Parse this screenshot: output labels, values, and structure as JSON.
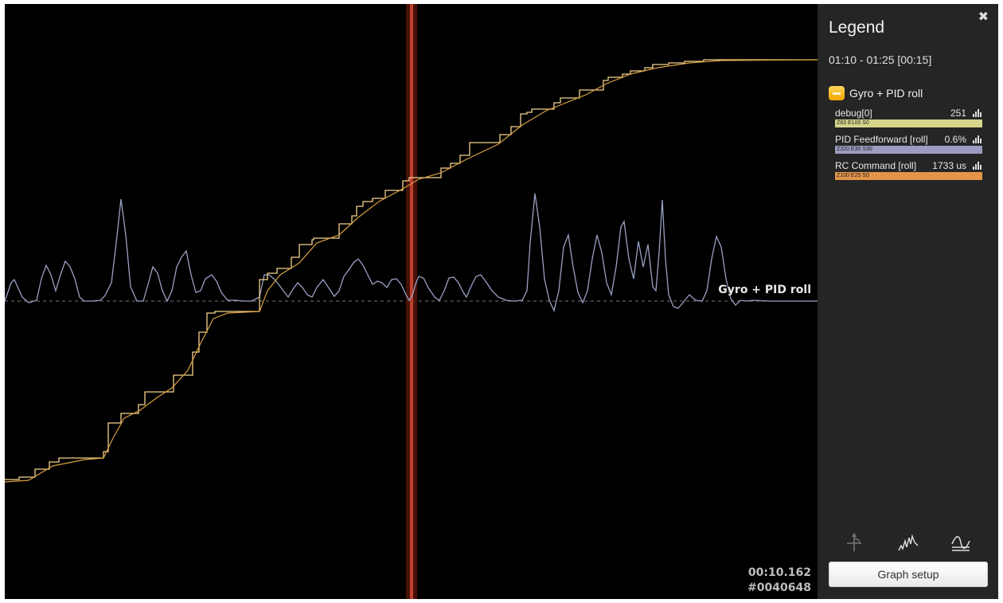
{
  "graph": {
    "overlay_label": "Gyro + PID roll",
    "time": "00:10.162",
    "frame": "#0040648",
    "colors": {
      "background": "#000000",
      "cursor": "#b33a2a",
      "zero_line": "#777777",
      "debug_trace": "#9aa0c4",
      "command_trace": "#f0c878",
      "feedforward_trace": "#d8a040"
    }
  },
  "legend": {
    "close_icon": "close-icon",
    "title": "Legend",
    "range": "01:10 - 01:25 [00:15]",
    "group": {
      "name": "Gyro + PID roll",
      "toggle_color": "#f5b400",
      "fields": [
        {
          "name": "debug[0]",
          "value": "251",
          "bar_text": "Z83 E100 S0",
          "bar_color": "#d6d68c"
        },
        {
          "name": "PID Feedforward [roll]",
          "value": "0.6%",
          "bar_text": "Z320 E30 S30",
          "bar_color": "#9c9cc2"
        },
        {
          "name": "RC Command [roll]",
          "value": "1733 us",
          "bar_text": "Z100 E25 S0",
          "bar_color": "#e2954a"
        }
      ]
    },
    "tools": [
      "axis-pan-icon",
      "spectrum-icon",
      "smoothing-icon"
    ],
    "setup_button": "Graph setup"
  }
}
